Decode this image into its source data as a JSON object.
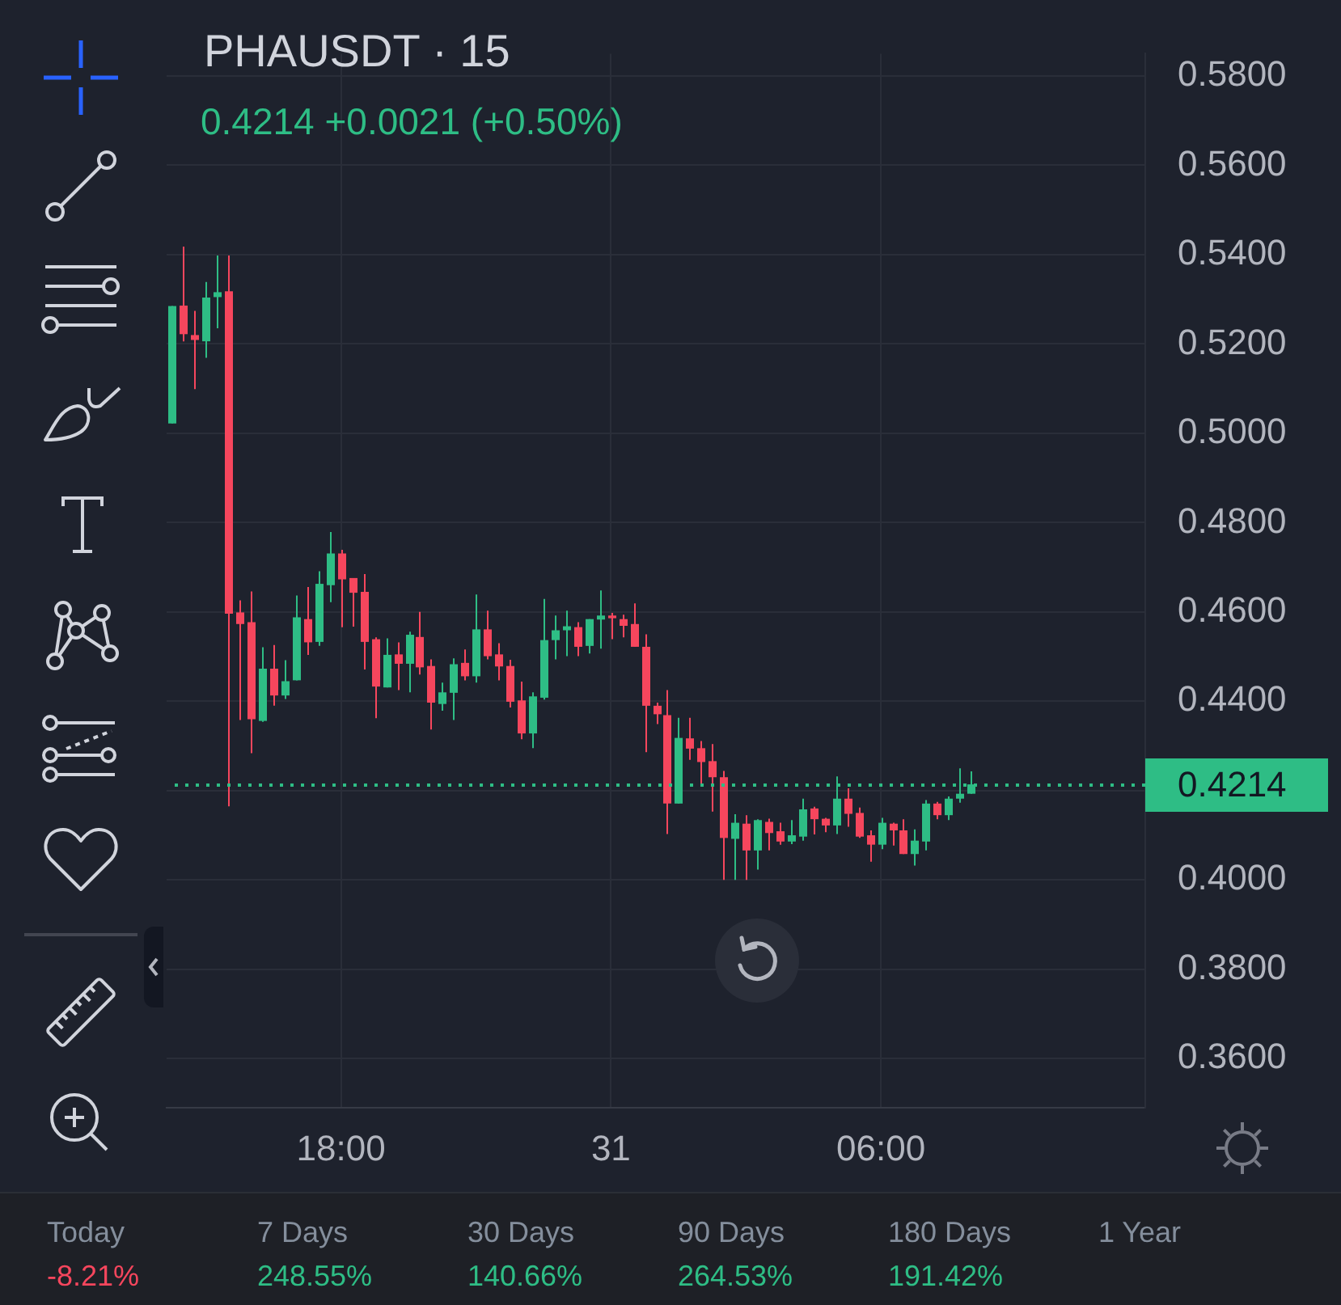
{
  "chart_data": {
    "type": "candlestick",
    "title": "PHAUSDT · 15",
    "categories": [
      null,
      null,
      null,
      null,
      null,
      null,
      null,
      null,
      null,
      null,
      null,
      null,
      null,
      null,
      null,
      "18:00",
      null,
      null,
      null,
      null,
      null,
      null,
      null,
      null,
      null,
      null,
      null,
      null,
      null,
      null,
      null,
      null,
      null,
      null,
      null,
      null,
      null,
      null,
      null,
      "31",
      null,
      null,
      null,
      null,
      null,
      null,
      null,
      null,
      null,
      null,
      null,
      null,
      null,
      null,
      null,
      null,
      null,
      null,
      null,
      null,
      null,
      null,
      null,
      "06:00",
      null,
      null,
      null,
      null,
      null,
      null,
      null,
      null,
      null,
      null,
      null,
      null,
      null,
      null,
      null,
      null,
      null,
      null,
      null,
      null,
      null,
      null,
      null
    ],
    "ohlc": [
      [
        0.5022,
        0.5285,
        0.5022,
        0.5285
      ],
      [
        0.5286,
        0.5418,
        0.5206,
        0.5222
      ],
      [
        0.522,
        0.5274,
        0.5099,
        0.5209
      ],
      [
        0.5206,
        0.5339,
        0.5169,
        0.5304
      ],
      [
        0.5305,
        0.5398,
        0.5235,
        0.5316
      ],
      [
        0.5318,
        0.5398,
        0.4165,
        0.4596
      ],
      [
        0.4599,
        0.4626,
        0.4358,
        0.4573
      ],
      [
        0.4577,
        0.4646,
        0.4284,
        0.436
      ],
      [
        0.4356,
        0.4521,
        0.4354,
        0.4473
      ],
      [
        0.4473,
        0.4526,
        0.439,
        0.4413
      ],
      [
        0.4413,
        0.4492,
        0.4405,
        0.4445
      ],
      [
        0.4447,
        0.4637,
        0.4447,
        0.4588
      ],
      [
        0.4584,
        0.4656,
        0.4504,
        0.4532
      ],
      [
        0.4533,
        0.4691,
        0.4524,
        0.4663
      ],
      [
        0.466,
        0.4779,
        0.4622,
        0.4731
      ],
      [
        0.4731,
        0.4739,
        0.4566,
        0.4673
      ],
      [
        0.4676,
        0.4676,
        0.4567,
        0.4643
      ],
      [
        0.4645,
        0.4685,
        0.4471,
        0.4533
      ],
      [
        0.4539,
        0.4543,
        0.4362,
        0.4433
      ],
      [
        0.4431,
        0.4541,
        0.4431,
        0.4504
      ],
      [
        0.4505,
        0.4532,
        0.4425,
        0.4484
      ],
      [
        0.4484,
        0.4556,
        0.442,
        0.4549
      ],
      [
        0.4544,
        0.46,
        0.446,
        0.4476
      ],
      [
        0.4479,
        0.4494,
        0.4337,
        0.4397
      ],
      [
        0.4394,
        0.4442,
        0.4379,
        0.442
      ],
      [
        0.4419,
        0.4496,
        0.4358,
        0.4483
      ],
      [
        0.4486,
        0.4516,
        0.4447,
        0.4456
      ],
      [
        0.4456,
        0.4639,
        0.4442,
        0.4561
      ],
      [
        0.4561,
        0.4603,
        0.4494,
        0.4501
      ],
      [
        0.4505,
        0.453,
        0.4447,
        0.4478
      ],
      [
        0.4479,
        0.4493,
        0.4386,
        0.4399
      ],
      [
        0.4402,
        0.4444,
        0.4315,
        0.4328
      ],
      [
        0.4328,
        0.442,
        0.4295,
        0.4411
      ],
      [
        0.4408,
        0.4629,
        0.4404,
        0.4537
      ],
      [
        0.4537,
        0.4592,
        0.4494,
        0.4559
      ],
      [
        0.4559,
        0.4603,
        0.4501,
        0.4568
      ],
      [
        0.4566,
        0.4577,
        0.4501,
        0.4522
      ],
      [
        0.4524,
        0.4584,
        0.4507,
        0.4584
      ],
      [
        0.4583,
        0.4648,
        0.4518,
        0.4592
      ],
      [
        0.4592,
        0.4598,
        0.4539,
        0.4586
      ],
      [
        0.4584,
        0.4594,
        0.4543,
        0.4569
      ],
      [
        0.4573,
        0.4619,
        0.4522,
        0.4522
      ],
      [
        0.4522,
        0.455,
        0.4286,
        0.439
      ],
      [
        0.439,
        0.4397,
        0.4349,
        0.4371
      ],
      [
        0.4369,
        0.4425,
        0.4103,
        0.4171
      ],
      [
        0.4171,
        0.4363,
        0.4171,
        0.4318
      ],
      [
        0.4317,
        0.4363,
        0.4269,
        0.4294
      ],
      [
        0.4295,
        0.4311,
        0.4213,
        0.4264
      ],
      [
        0.4266,
        0.4304,
        0.4153,
        0.423
      ],
      [
        0.423,
        0.4244,
        0.4,
        0.4094
      ],
      [
        0.4092,
        0.4147,
        0.4,
        0.4128
      ],
      [
        0.4126,
        0.4145,
        0.4,
        0.4066
      ],
      [
        0.4066,
        0.4136,
        0.4023,
        0.4134
      ],
      [
        0.413,
        0.4137,
        0.4066,
        0.4105
      ],
      [
        0.4109,
        0.4128,
        0.4079,
        0.4086
      ],
      [
        0.4086,
        0.4134,
        0.408,
        0.41
      ],
      [
        0.4097,
        0.4182,
        0.4088,
        0.4158
      ],
      [
        0.416,
        0.4164,
        0.4102,
        0.4136
      ],
      [
        0.4137,
        0.4139,
        0.4107,
        0.4122
      ],
      [
        0.4122,
        0.4232,
        0.4103,
        0.4182
      ],
      [
        0.4182,
        0.4205,
        0.4119,
        0.4148
      ],
      [
        0.415,
        0.4162,
        0.4094,
        0.4097
      ],
      [
        0.41,
        0.4111,
        0.4041,
        0.4079
      ],
      [
        0.4079,
        0.4139,
        0.4069,
        0.4128
      ],
      [
        0.4126,
        0.4128,
        0.4077,
        0.4111
      ],
      [
        0.4111,
        0.4136,
        0.4058,
        0.4058
      ],
      [
        0.4058,
        0.4113,
        0.4032,
        0.4088
      ],
      [
        0.4086,
        0.4179,
        0.4066,
        0.4171
      ],
      [
        0.4171,
        0.4175,
        0.4136,
        0.4145
      ],
      [
        0.4145,
        0.4187,
        0.4134,
        0.4182
      ],
      [
        0.4182,
        0.425,
        0.4173,
        0.4193
      ],
      [
        0.4193,
        0.4243,
        0.4193,
        0.4214
      ],
      null,
      null,
      null,
      null,
      null,
      null,
      null,
      null,
      null,
      null,
      null,
      null,
      null,
      null,
      null
    ],
    "colors": [
      "#2ebd85",
      "#f6465d",
      "#f6465d",
      "#2ebd85",
      "#2ebd85",
      "#f6465d",
      "#f6465d",
      "#f6465d",
      "#2ebd85",
      "#f6465d",
      "#2ebd85",
      "#2ebd85",
      "#f6465d",
      "#2ebd85",
      "#2ebd85",
      "#f6465d",
      "#f6465d",
      "#f6465d",
      "#f6465d",
      "#2ebd85",
      "#f6465d",
      "#2ebd85",
      "#f6465d",
      "#f6465d",
      "#2ebd85",
      "#2ebd85",
      "#f6465d",
      "#2ebd85",
      "#f6465d",
      "#f6465d",
      "#f6465d",
      "#f6465d",
      "#2ebd85",
      "#2ebd85",
      "#2ebd85",
      "#2ebd85",
      "#f6465d",
      "#2ebd85",
      "#2ebd85",
      "#f6465d",
      "#f6465d",
      "#f6465d",
      "#f6465d",
      "#f6465d",
      "#f6465d",
      "#2ebd85",
      "#f6465d",
      "#f6465d",
      "#f6465d",
      "#f6465d",
      "#2ebd85",
      "#f6465d",
      "#2ebd85",
      "#f6465d",
      "#f6465d",
      "#2ebd85",
      "#2ebd85",
      "#f6465d",
      "#f6465d",
      "#2ebd85",
      "#f6465d",
      "#f6465d",
      "#f6465d",
      "#2ebd85",
      "#f6465d",
      "#f6465d",
      "#2ebd85",
      "#2ebd85",
      "#f6465d",
      "#2ebd85",
      "#2ebd85",
      "#2ebd85",
      null,
      null,
      null,
      null,
      null,
      null,
      null,
      null,
      null,
      null,
      null,
      null,
      null,
      null,
      null
    ],
    "ylim": [
      0.349,
      0.585
    ],
    "yticks": [
      {
        "value": 0.36,
        "label": "0.3600"
      },
      {
        "value": 0.38,
        "label": "0.3800"
      },
      {
        "value": 0.4,
        "label": "0.4000"
      },
      {
        "value": 0.42,
        "label": null
      },
      {
        "value": 0.44,
        "label": "0.4400"
      },
      {
        "value": 0.46,
        "label": "0.4600"
      },
      {
        "value": 0.48,
        "label": "0.4800"
      },
      {
        "value": 0.5,
        "label": "0.5000"
      },
      {
        "value": 0.52,
        "label": "0.5200"
      },
      {
        "value": 0.54,
        "label": "0.5400"
      },
      {
        "value": 0.56,
        "label": "0.5600"
      },
      {
        "value": 0.58,
        "label": "0.5800"
      }
    ],
    "grid": true,
    "ref_lines": [
      {
        "axis": "y",
        "value": 0.4214,
        "label": "0.4214",
        "color": "#2ebd85",
        "line_style": "dotted"
      }
    ],
    "annotations": [
      "0.4214 +0.0021 (+0.50%)",
      "Today",
      "-8.21%",
      "7 Days",
      "248.55%",
      "30 Days",
      "140.66%",
      "90 Days",
      "264.53%",
      "180 Days",
      "191.42%",
      "1 Year"
    ]
  }
}
